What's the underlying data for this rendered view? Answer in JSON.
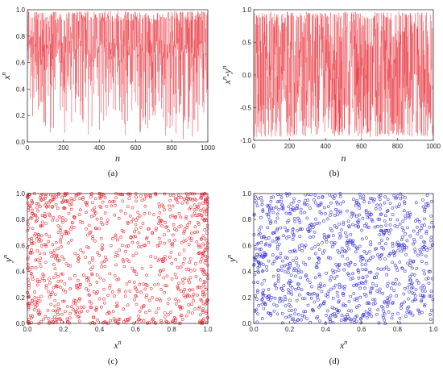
{
  "chart_data": [
    {
      "type": "line",
      "label": "(a)",
      "xlabel": "n",
      "ylabel": "x^n",
      "xlabel_base": "n",
      "xlabel_sup": "",
      "ylabel_base": "x",
      "ylabel_sup": "n",
      "xlim": [
        0,
        1000
      ],
      "ylim": [
        0,
        1.0
      ],
      "xticks": [
        "0",
        "200",
        "400",
        "600",
        "800",
        "1000"
      ],
      "yticks": [
        "0.0",
        "0.2",
        "0.4",
        "0.6",
        "0.8",
        "1.0"
      ],
      "series": [
        {
          "color": "#e8202a",
          "points": 1000,
          "min": 0.01,
          "max": 0.99,
          "pattern": "chaotic oscillation, dense near 0.7"
        }
      ]
    },
    {
      "type": "line",
      "label": "(b)",
      "xlabel": "n",
      "ylabel": "x^n-y^n",
      "xlabel_base": "n",
      "xlabel_sup": "",
      "ylabel_base": "x",
      "ylabel_sup": "n",
      "ylabel_mid": "-y",
      "ylabel_sup2": "n",
      "xlim": [
        0,
        1000
      ],
      "ylim": [
        -1.0,
        1.0
      ],
      "xticks": [
        "0",
        "200",
        "400",
        "600",
        "800",
        "1000"
      ],
      "yticks": [
        "-1.0",
        "-0.5",
        "0.0",
        "0.5",
        "1.0"
      ],
      "series": [
        {
          "color": "#e8202a",
          "points": 1000,
          "min": -0.95,
          "max": 0.97,
          "pattern": "chaotic oscillation around 0"
        }
      ]
    },
    {
      "type": "scatter",
      "label": "(c)",
      "xlabel": "x^n",
      "ylabel": "y^n",
      "xlabel_base": "x",
      "xlabel_sup": "n",
      "ylabel_base": "y",
      "ylabel_sup": "n",
      "xlim": [
        0,
        1.0
      ],
      "ylim": [
        0,
        1.0
      ],
      "xticks": [
        "0.0",
        "0.2",
        "0.4",
        "0.6",
        "0.8",
        "1.0"
      ],
      "yticks": [
        "0.0",
        "0.2",
        "0.4",
        "0.6",
        "0.8",
        "1.0"
      ],
      "series": [
        {
          "color": "#e8202a",
          "points": 1000,
          "marker": "open-circle",
          "pattern": "denser near edges"
        }
      ]
    },
    {
      "type": "scatter",
      "label": "(d)",
      "xlabel": "x^n",
      "ylabel": "y^n",
      "xlabel_base": "x",
      "xlabel_sup": "n",
      "ylabel_base": "y",
      "ylabel_sup": "n",
      "xlim": [
        0,
        1.0
      ],
      "ylim": [
        0,
        1.0
      ],
      "xticks": [
        "0.0",
        "0.2",
        "0.4",
        "0.6",
        "0.8",
        "1.0"
      ],
      "yticks": [
        "0.0",
        "0.2",
        "0.4",
        "0.6",
        "0.8",
        "1.0"
      ],
      "series": [
        {
          "color": "#2a2ad8",
          "points": 1000,
          "marker": "open-circle",
          "pattern": "uniform"
        }
      ]
    }
  ]
}
